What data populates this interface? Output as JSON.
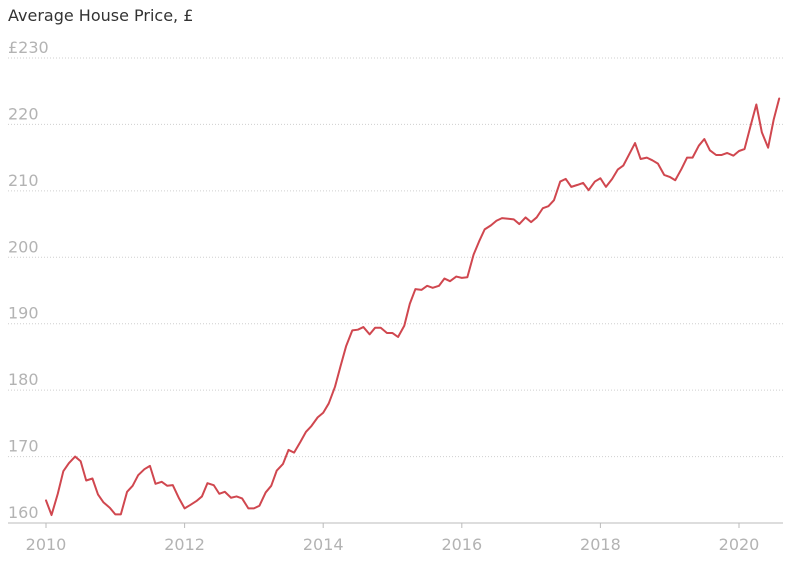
{
  "chart_data": {
    "type": "line",
    "title": "Average House Price, £",
    "xlabel": "",
    "ylabel": "",
    "y_first_tick_prefix": "£",
    "xlim": [
      2010.0,
      2020.6
    ],
    "ylim": [
      160,
      230
    ],
    "y_ticks": [
      160,
      170,
      180,
      190,
      200,
      210,
      220,
      230
    ],
    "x_ticks": [
      2010,
      2012,
      2014,
      2016,
      2018,
      2020
    ],
    "grid": true,
    "line_color": "#d0474f",
    "series": [
      {
        "x": [
          2010.0,
          2010.08,
          2010.17,
          2010.25,
          2010.33,
          2010.42,
          2010.5,
          2010.58,
          2010.67,
          2010.75,
          2010.83,
          2010.92,
          2011.0,
          2011.08,
          2011.17,
          2011.25,
          2011.33,
          2011.42,
          2011.5,
          2011.58,
          2011.67,
          2011.75,
          2011.83,
          2011.92,
          2012.0,
          2012.08,
          2012.17,
          2012.25,
          2012.33,
          2012.42,
          2012.5,
          2012.58,
          2012.67,
          2012.75,
          2012.83,
          2012.92,
          2013.0,
          2013.08,
          2013.17,
          2013.25,
          2013.33,
          2013.42,
          2013.5,
          2013.58,
          2013.67,
          2013.75,
          2013.83,
          2013.92,
          2014.0,
          2014.08,
          2014.17,
          2014.25,
          2014.33,
          2014.42,
          2014.5,
          2014.58,
          2014.67,
          2014.75,
          2014.83,
          2014.92,
          2015.0,
          2015.08,
          2015.17,
          2015.25,
          2015.33,
          2015.42,
          2015.5,
          2015.58,
          2015.67,
          2015.75,
          2015.83,
          2015.92,
          2016.0,
          2016.08,
          2016.17,
          2016.25,
          2016.33,
          2016.42,
          2016.5,
          2016.58,
          2016.67,
          2016.75,
          2016.83,
          2016.92,
          2017.0,
          2017.08,
          2017.17,
          2017.25,
          2017.33,
          2017.42,
          2017.5,
          2017.58,
          2017.67,
          2017.75,
          2017.83,
          2017.92,
          2018.0,
          2018.08,
          2018.17,
          2018.25,
          2018.33,
          2018.42,
          2018.5,
          2018.58,
          2018.67,
          2018.75,
          2018.83,
          2018.92,
          2019.0,
          2019.08,
          2019.17,
          2019.25,
          2019.33,
          2019.42,
          2019.5,
          2019.58,
          2019.67,
          2019.75,
          2019.83,
          2019.92,
          2020.0,
          2020.08,
          2020.17,
          2020.25,
          2020.33,
          2020.42,
          2020.5,
          2020.58
        ],
        "values": [
          163.4,
          161.2,
          164.4,
          167.8,
          169.0,
          170.0,
          169.3,
          166.4,
          166.7,
          164.3,
          163.1,
          162.3,
          161.3,
          161.3,
          164.7,
          165.6,
          167.2,
          168.1,
          168.6,
          165.9,
          166.2,
          165.6,
          165.7,
          163.7,
          162.2,
          162.7,
          163.3,
          164.0,
          166.0,
          165.7,
          164.4,
          164.7,
          163.8,
          164.0,
          163.7,
          162.2,
          162.2,
          162.6,
          164.6,
          165.6,
          167.9,
          168.9,
          171.0,
          170.6,
          172.2,
          173.7,
          174.6,
          175.9,
          176.6,
          178.0,
          180.5,
          183.6,
          186.6,
          189.0,
          189.1,
          189.5,
          188.4,
          189.4,
          189.4,
          188.6,
          188.6,
          188.0,
          189.7,
          193.0,
          195.2,
          195.1,
          195.7,
          195.4,
          195.7,
          196.8,
          196.4,
          197.1,
          196.9,
          197.0,
          200.4,
          202.4,
          204.2,
          204.8,
          205.5,
          205.9,
          205.8,
          205.7,
          205.0,
          206.0,
          205.3,
          206.0,
          207.4,
          207.7,
          208.6,
          211.4,
          211.8,
          210.6,
          210.9,
          211.2,
          210.1,
          211.4,
          211.9,
          210.6,
          211.8,
          213.2,
          213.8,
          215.6,
          217.2,
          214.8,
          215.0,
          214.6,
          214.1,
          212.4,
          212.1,
          211.6,
          213.3,
          215.0,
          215.0,
          216.8,
          217.8,
          216.1,
          215.4,
          215.4,
          215.7,
          215.3,
          216.0,
          216.3,
          219.9,
          223.0,
          218.8,
          216.5,
          220.7,
          223.9
        ]
      }
    ]
  }
}
